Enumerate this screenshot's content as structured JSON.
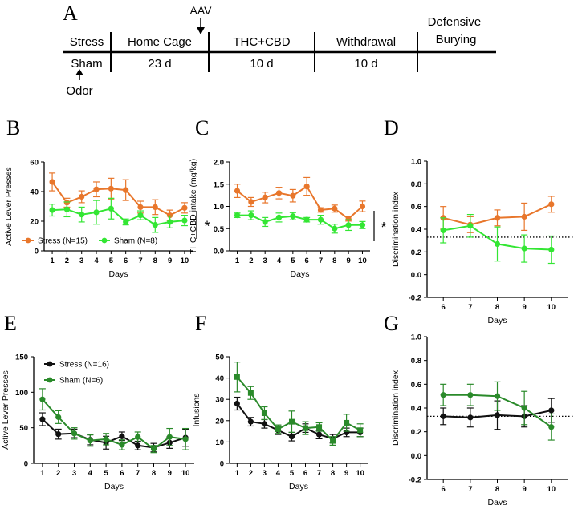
{
  "timeline": {
    "panel_label": "A",
    "aav_label": "AAV",
    "odor_label": "Odor",
    "phases": [
      {
        "name": "Stress",
        "duration": "Sham"
      },
      {
        "name": "Home Cage",
        "duration": "23 d"
      },
      {
        "name": "THC+CBD",
        "duration": "10 d"
      },
      {
        "name": "Withdrawal",
        "duration": "10 d"
      },
      {
        "name": "Defensive\nBurying",
        "duration": ""
      }
    ]
  },
  "colors": {
    "stress_top": "#e8762b",
    "sham_top": "#33e633",
    "stress_bottom": "#111111",
    "sham_bottom": "#2a8a2a",
    "axis": "#000000"
  },
  "chart_data": [
    {
      "id": "B",
      "type": "line",
      "panel_label": "B",
      "xlabel": "Days",
      "ylabel": "Active Lever Presses",
      "x": [
        1,
        2,
        3,
        4,
        5,
        6,
        7,
        8,
        9,
        10
      ],
      "ylim": [
        0,
        60
      ],
      "yticks": [
        0,
        20,
        40,
        60
      ],
      "series": [
        {
          "name": "Stress (N=15)",
          "color": "#e8762b",
          "marker": "circle",
          "values": [
            46.5,
            32.5,
            36.5,
            41.5,
            42,
            41,
            29.5,
            29.5,
            24,
            29
          ],
          "errors": [
            6,
            3,
            4,
            5,
            7,
            7,
            4,
            5,
            3.5,
            3.5
          ]
        },
        {
          "name": "Sham (N=8)",
          "color": "#33e633",
          "marker": "circle",
          "values": [
            27.5,
            28,
            24.5,
            26,
            28.5,
            19.5,
            24,
            17.5,
            19.5,
            20.5
          ],
          "errors": [
            4,
            5,
            5,
            8,
            7,
            2,
            3,
            5,
            4,
            3.5
          ]
        }
      ],
      "significance": "*"
    },
    {
      "id": "C",
      "type": "line",
      "panel_label": "C",
      "xlabel": "Days",
      "ylabel": "THC+CBD intake (mg/kg)",
      "x": [
        1,
        2,
        3,
        4,
        5,
        6,
        7,
        8,
        9,
        10
      ],
      "ylim": [
        0,
        2.0
      ],
      "yticks": [
        0.0,
        0.5,
        1.0,
        1.5,
        2.0
      ],
      "series": [
        {
          "name": "Stress",
          "color": "#e8762b",
          "marker": "circle",
          "values": [
            1.35,
            1.1,
            1.2,
            1.3,
            1.24,
            1.45,
            0.92,
            0.95,
            0.72,
            1.0
          ],
          "errors": [
            0.15,
            0.1,
            0.12,
            0.13,
            0.14,
            0.2,
            0.05,
            0.08,
            0.05,
            0.12
          ]
        },
        {
          "name": "Sham",
          "color": "#33e633",
          "marker": "circle",
          "values": [
            0.8,
            0.8,
            0.65,
            0.75,
            0.78,
            0.7,
            0.7,
            0.5,
            0.58,
            0.58
          ],
          "errors": [
            0.05,
            0.1,
            0.1,
            0.1,
            0.08,
            0.05,
            0.1,
            0.1,
            0.12,
            0.08
          ]
        }
      ],
      "significance": "*"
    },
    {
      "id": "D",
      "type": "line",
      "panel_label": "D",
      "xlabel": "Days",
      "ylabel": "Discrimination index",
      "x": [
        6,
        7,
        8,
        9,
        10
      ],
      "ylim": [
        -0.2,
        1.0
      ],
      "yticks": [
        -0.2,
        0.0,
        0.2,
        0.4,
        0.6,
        0.8,
        1.0
      ],
      "reference_line": 0.33,
      "series": [
        {
          "name": "Stress",
          "color": "#e8762b",
          "marker": "circle",
          "values": [
            0.5,
            0.44,
            0.5,
            0.51,
            0.62
          ],
          "errors": [
            0.1,
            0.07,
            0.07,
            0.12,
            0.07
          ]
        },
        {
          "name": "Sham",
          "color": "#33e633",
          "marker": "circle",
          "values": [
            0.39,
            0.43,
            0.27,
            0.23,
            0.22
          ],
          "errors": [
            0.11,
            0.1,
            0.15,
            0.12,
            0.12
          ]
        }
      ]
    },
    {
      "id": "E",
      "type": "line",
      "panel_label": "E",
      "xlabel": "Days",
      "ylabel": "Active Lever Presses",
      "x": [
        1,
        2,
        3,
        4,
        5,
        6,
        7,
        8,
        9,
        10
      ],
      "ylim": [
        0,
        150
      ],
      "yticks": [
        0,
        50,
        100,
        150
      ],
      "series": [
        {
          "name": "Stress (N=16)",
          "color": "#111111",
          "marker": "circle",
          "values": [
            62,
            41,
            42,
            33,
            29,
            38,
            25,
            22,
            29,
            36
          ],
          "errors": [
            9,
            7,
            6,
            7,
            9,
            6,
            6,
            6,
            8,
            12
          ]
        },
        {
          "name": "Sham (N=6)",
          "color": "#2a8a2a",
          "marker": "circle",
          "values": [
            90,
            65,
            42,
            32,
            34,
            26,
            37,
            20,
            37,
            34
          ],
          "errors": [
            15,
            9,
            8,
            8,
            8,
            7,
            7,
            5,
            12,
            15
          ]
        }
      ]
    },
    {
      "id": "F",
      "type": "line",
      "panel_label": "F",
      "xlabel": "Days",
      "ylabel": "Infusions",
      "x": [
        1,
        2,
        3,
        4,
        5,
        6,
        7,
        8,
        9,
        10
      ],
      "ylim": [
        0,
        50
      ],
      "yticks": [
        0,
        10,
        20,
        30,
        40,
        50
      ],
      "series": [
        {
          "name": "Stress",
          "color": "#111111",
          "marker": "circle",
          "values": [
            28,
            19.5,
            18.5,
            15.5,
            12.5,
            16.5,
            13.5,
            11.5,
            14.5,
            14.5
          ],
          "errors": [
            3,
            2,
            2,
            2,
            2,
            2,
            2,
            2,
            2,
            2
          ]
        },
        {
          "name": "Sham",
          "color": "#2a8a2a",
          "marker": "square",
          "values": [
            40.5,
            33,
            23.5,
            16,
            19.5,
            16.5,
            17,
            10.5,
            19,
            15.5
          ],
          "errors": [
            7,
            3,
            3,
            2,
            5,
            3,
            2,
            2,
            4,
            3
          ]
        }
      ]
    },
    {
      "id": "G",
      "type": "line",
      "panel_label": "G",
      "xlabel": "Days",
      "ylabel": "Discrimination index",
      "x": [
        6,
        7,
        8,
        9,
        10
      ],
      "ylim": [
        -0.2,
        1.0
      ],
      "yticks": [
        -0.2,
        0.0,
        0.2,
        0.4,
        0.6,
        0.8,
        1.0
      ],
      "reference_line": 0.33,
      "series": [
        {
          "name": "Stress",
          "color": "#111111",
          "marker": "circle",
          "values": [
            0.33,
            0.32,
            0.34,
            0.33,
            0.38
          ],
          "errors": [
            0.07,
            0.08,
            0.12,
            0.09,
            0.1
          ]
        },
        {
          "name": "Sham",
          "color": "#2a8a2a",
          "marker": "circle",
          "values": [
            0.51,
            0.51,
            0.5,
            0.4,
            0.24
          ],
          "errors": [
            0.09,
            0.09,
            0.12,
            0.14,
            0.11
          ]
        }
      ]
    }
  ]
}
